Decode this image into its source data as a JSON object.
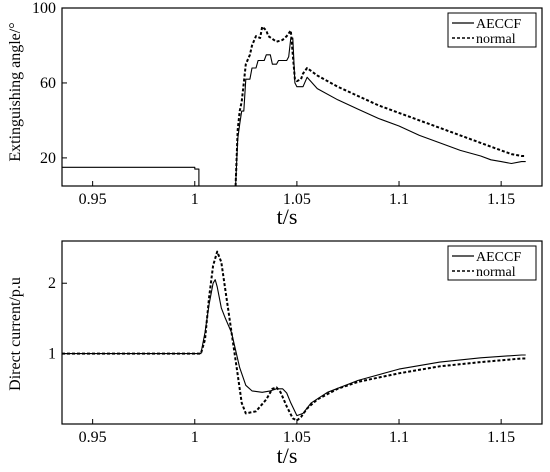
{
  "chart_data": [
    {
      "type": "line",
      "ylabel": "Extinguishing angle/°",
      "xlabel": "t/s",
      "xlim": [
        0.935,
        1.17
      ],
      "ylim": [
        5,
        100
      ],
      "xticks": [
        "0.95",
        "1",
        "1.05",
        "1.1",
        "1.15"
      ],
      "yticks": [
        "20",
        "60",
        "100"
      ],
      "grid": false,
      "legend_position": "top-right",
      "series": [
        {
          "name": "AECCF",
          "style": "solid",
          "points": [
            [
              0.935,
              15
            ],
            [
              1.0,
              15
            ],
            [
              1.0,
              14
            ],
            [
              1.002,
              14
            ],
            [
              1.002,
              5
            ],
            [
              1.02,
              5
            ],
            [
              1.021,
              30
            ],
            [
              1.022,
              38
            ],
            [
              1.023,
              45
            ],
            [
              1.024,
              45
            ],
            [
              1.025,
              62
            ],
            [
              1.027,
              62
            ],
            [
              1.028,
              68
            ],
            [
              1.03,
              68
            ],
            [
              1.031,
              72
            ],
            [
              1.034,
              72
            ],
            [
              1.035,
              75
            ],
            [
              1.037,
              75
            ],
            [
              1.038,
              70
            ],
            [
              1.04,
              70
            ],
            [
              1.041,
              72
            ],
            [
              1.045,
              72
            ],
            [
              1.046,
              74
            ],
            [
              1.047,
              84
            ],
            [
              1.048,
              84
            ],
            [
              1.049,
              60
            ],
            [
              1.05,
              58
            ],
            [
              1.053,
              58
            ],
            [
              1.055,
              63
            ],
            [
              1.06,
              57
            ],
            [
              1.07,
              51
            ],
            [
              1.08,
              46
            ],
            [
              1.09,
              41
            ],
            [
              1.1,
              37
            ],
            [
              1.11,
              32
            ],
            [
              1.12,
              28
            ],
            [
              1.13,
              24
            ],
            [
              1.14,
              21
            ],
            [
              1.145,
              19
            ],
            [
              1.15,
              18
            ],
            [
              1.155,
              17
            ],
            [
              1.16,
              18
            ],
            [
              1.162,
              18
            ]
          ]
        },
        {
          "name": "normal",
          "style": "dashed",
          "points": [
            [
              1.02,
              5
            ],
            [
              1.021,
              35
            ],
            [
              1.022,
              45
            ],
            [
              1.023,
              50
            ],
            [
              1.024,
              60
            ],
            [
              1.025,
              70
            ],
            [
              1.027,
              75
            ],
            [
              1.028,
              80
            ],
            [
              1.03,
              85
            ],
            [
              1.032,
              84
            ],
            [
              1.033,
              90
            ],
            [
              1.035,
              88
            ],
            [
              1.036,
              85
            ],
            [
              1.04,
              82
            ],
            [
              1.043,
              83
            ],
            [
              1.045,
              85
            ],
            [
              1.047,
              88
            ],
            [
              1.048,
              75
            ],
            [
              1.049,
              62
            ],
            [
              1.05,
              61
            ],
            [
              1.052,
              62
            ],
            [
              1.053,
              65
            ],
            [
              1.055,
              68
            ],
            [
              1.06,
              64
            ],
            [
              1.07,
              58
            ],
            [
              1.08,
              53
            ],
            [
              1.09,
              48
            ],
            [
              1.1,
              44
            ],
            [
              1.11,
              40
            ],
            [
              1.12,
              36
            ],
            [
              1.13,
              32
            ],
            [
              1.14,
              28
            ],
            [
              1.15,
              24
            ],
            [
              1.155,
              22
            ],
            [
              1.16,
              21
            ],
            [
              1.162,
              21
            ]
          ]
        }
      ]
    },
    {
      "type": "line",
      "ylabel": "Direct current/p.u",
      "xlabel": "t/s",
      "xlim": [
        0.935,
        1.17
      ],
      "ylim": [
        0,
        2.6
      ],
      "xticks": [
        "0.95",
        "1",
        "1.05",
        "1.1",
        "1.15"
      ],
      "yticks": [
        "1",
        "2"
      ],
      "grid": false,
      "legend_position": "top-right",
      "series": [
        {
          "name": "AECCF",
          "style": "solid",
          "points": [
            [
              0.935,
              1.0
            ],
            [
              1.003,
              1.0
            ],
            [
              1.005,
              1.3
            ],
            [
              1.007,
              1.7
            ],
            [
              1.009,
              2.0
            ],
            [
              1.01,
              2.05
            ],
            [
              1.011,
              1.95
            ],
            [
              1.013,
              1.65
            ],
            [
              1.015,
              1.5
            ],
            [
              1.018,
              1.3
            ],
            [
              1.02,
              1.05
            ],
            [
              1.022,
              0.8
            ],
            [
              1.025,
              0.55
            ],
            [
              1.028,
              0.47
            ],
            [
              1.033,
              0.45
            ],
            [
              1.037,
              0.47
            ],
            [
              1.04,
              0.5
            ],
            [
              1.043,
              0.5
            ],
            [
              1.045,
              0.44
            ],
            [
              1.047,
              0.3
            ],
            [
              1.05,
              0.12
            ],
            [
              1.053,
              0.15
            ],
            [
              1.057,
              0.3
            ],
            [
              1.065,
              0.45
            ],
            [
              1.08,
              0.62
            ],
            [
              1.1,
              0.78
            ],
            [
              1.12,
              0.88
            ],
            [
              1.14,
              0.94
            ],
            [
              1.16,
              0.98
            ],
            [
              1.162,
              0.98
            ]
          ]
        },
        {
          "name": "normal",
          "style": "dashed",
          "points": [
            [
              0.935,
              1.0
            ],
            [
              1.003,
              1.0
            ],
            [
              1.005,
              1.2
            ],
            [
              1.007,
              1.8
            ],
            [
              1.009,
              2.25
            ],
            [
              1.011,
              2.45
            ],
            [
              1.013,
              2.3
            ],
            [
              1.015,
              1.9
            ],
            [
              1.017,
              1.5
            ],
            [
              1.019,
              1.1
            ],
            [
              1.021,
              0.7
            ],
            [
              1.023,
              0.3
            ],
            [
              1.025,
              0.15
            ],
            [
              1.03,
              0.18
            ],
            [
              1.035,
              0.35
            ],
            [
              1.038,
              0.5
            ],
            [
              1.04,
              0.52
            ],
            [
              1.042,
              0.45
            ],
            [
              1.045,
              0.25
            ],
            [
              1.048,
              0.08
            ],
            [
              1.05,
              0.05
            ],
            [
              1.052,
              0.1
            ],
            [
              1.055,
              0.22
            ],
            [
              1.06,
              0.35
            ],
            [
              1.07,
              0.5
            ],
            [
              1.08,
              0.6
            ],
            [
              1.1,
              0.72
            ],
            [
              1.12,
              0.82
            ],
            [
              1.14,
              0.88
            ],
            [
              1.16,
              0.93
            ],
            [
              1.162,
              0.93
            ]
          ]
        }
      ]
    }
  ]
}
